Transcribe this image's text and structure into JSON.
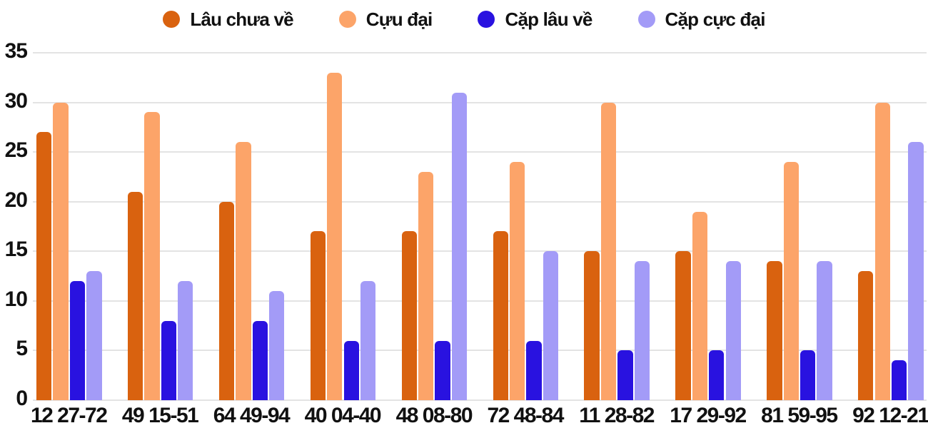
{
  "chart_data": {
    "type": "bar",
    "title": "",
    "categories": [
      "12 27-72",
      "49 15-51",
      "64 49-94",
      "40 04-40",
      "48 08-80",
      "72 48-84",
      "11 28-82",
      "17 29-92",
      "81 59-95",
      "92 12-21"
    ],
    "series": [
      {
        "name": "Lâu chưa về",
        "color": "#d9620f",
        "values": [
          27,
          21,
          20,
          17,
          17,
          17,
          15,
          15,
          14,
          13
        ]
      },
      {
        "name": "Cựu đại",
        "color": "#fca469",
        "values": [
          30,
          29,
          26,
          33,
          23,
          24,
          30,
          19,
          24,
          30
        ]
      },
      {
        "name": "Cặp lâu về",
        "color": "#2912e0",
        "values": [
          12,
          8,
          8,
          6,
          6,
          6,
          5,
          5,
          5,
          4
        ]
      },
      {
        "name": "Cặp cực đại",
        "color": "#a39bf7",
        "values": [
          13,
          12,
          11,
          12,
          31,
          15,
          14,
          14,
          14,
          26
        ]
      }
    ],
    "xlabel": "",
    "ylabel": "",
    "ylim": [
      0,
      35
    ],
    "yticks": [
      0,
      5,
      10,
      15,
      20,
      25,
      30,
      35
    ],
    "grid": true,
    "legend_position": "top",
    "background_color": "#ffffff",
    "gridline_color": "#e3e3e3",
    "axis_text_color": "#111111"
  }
}
